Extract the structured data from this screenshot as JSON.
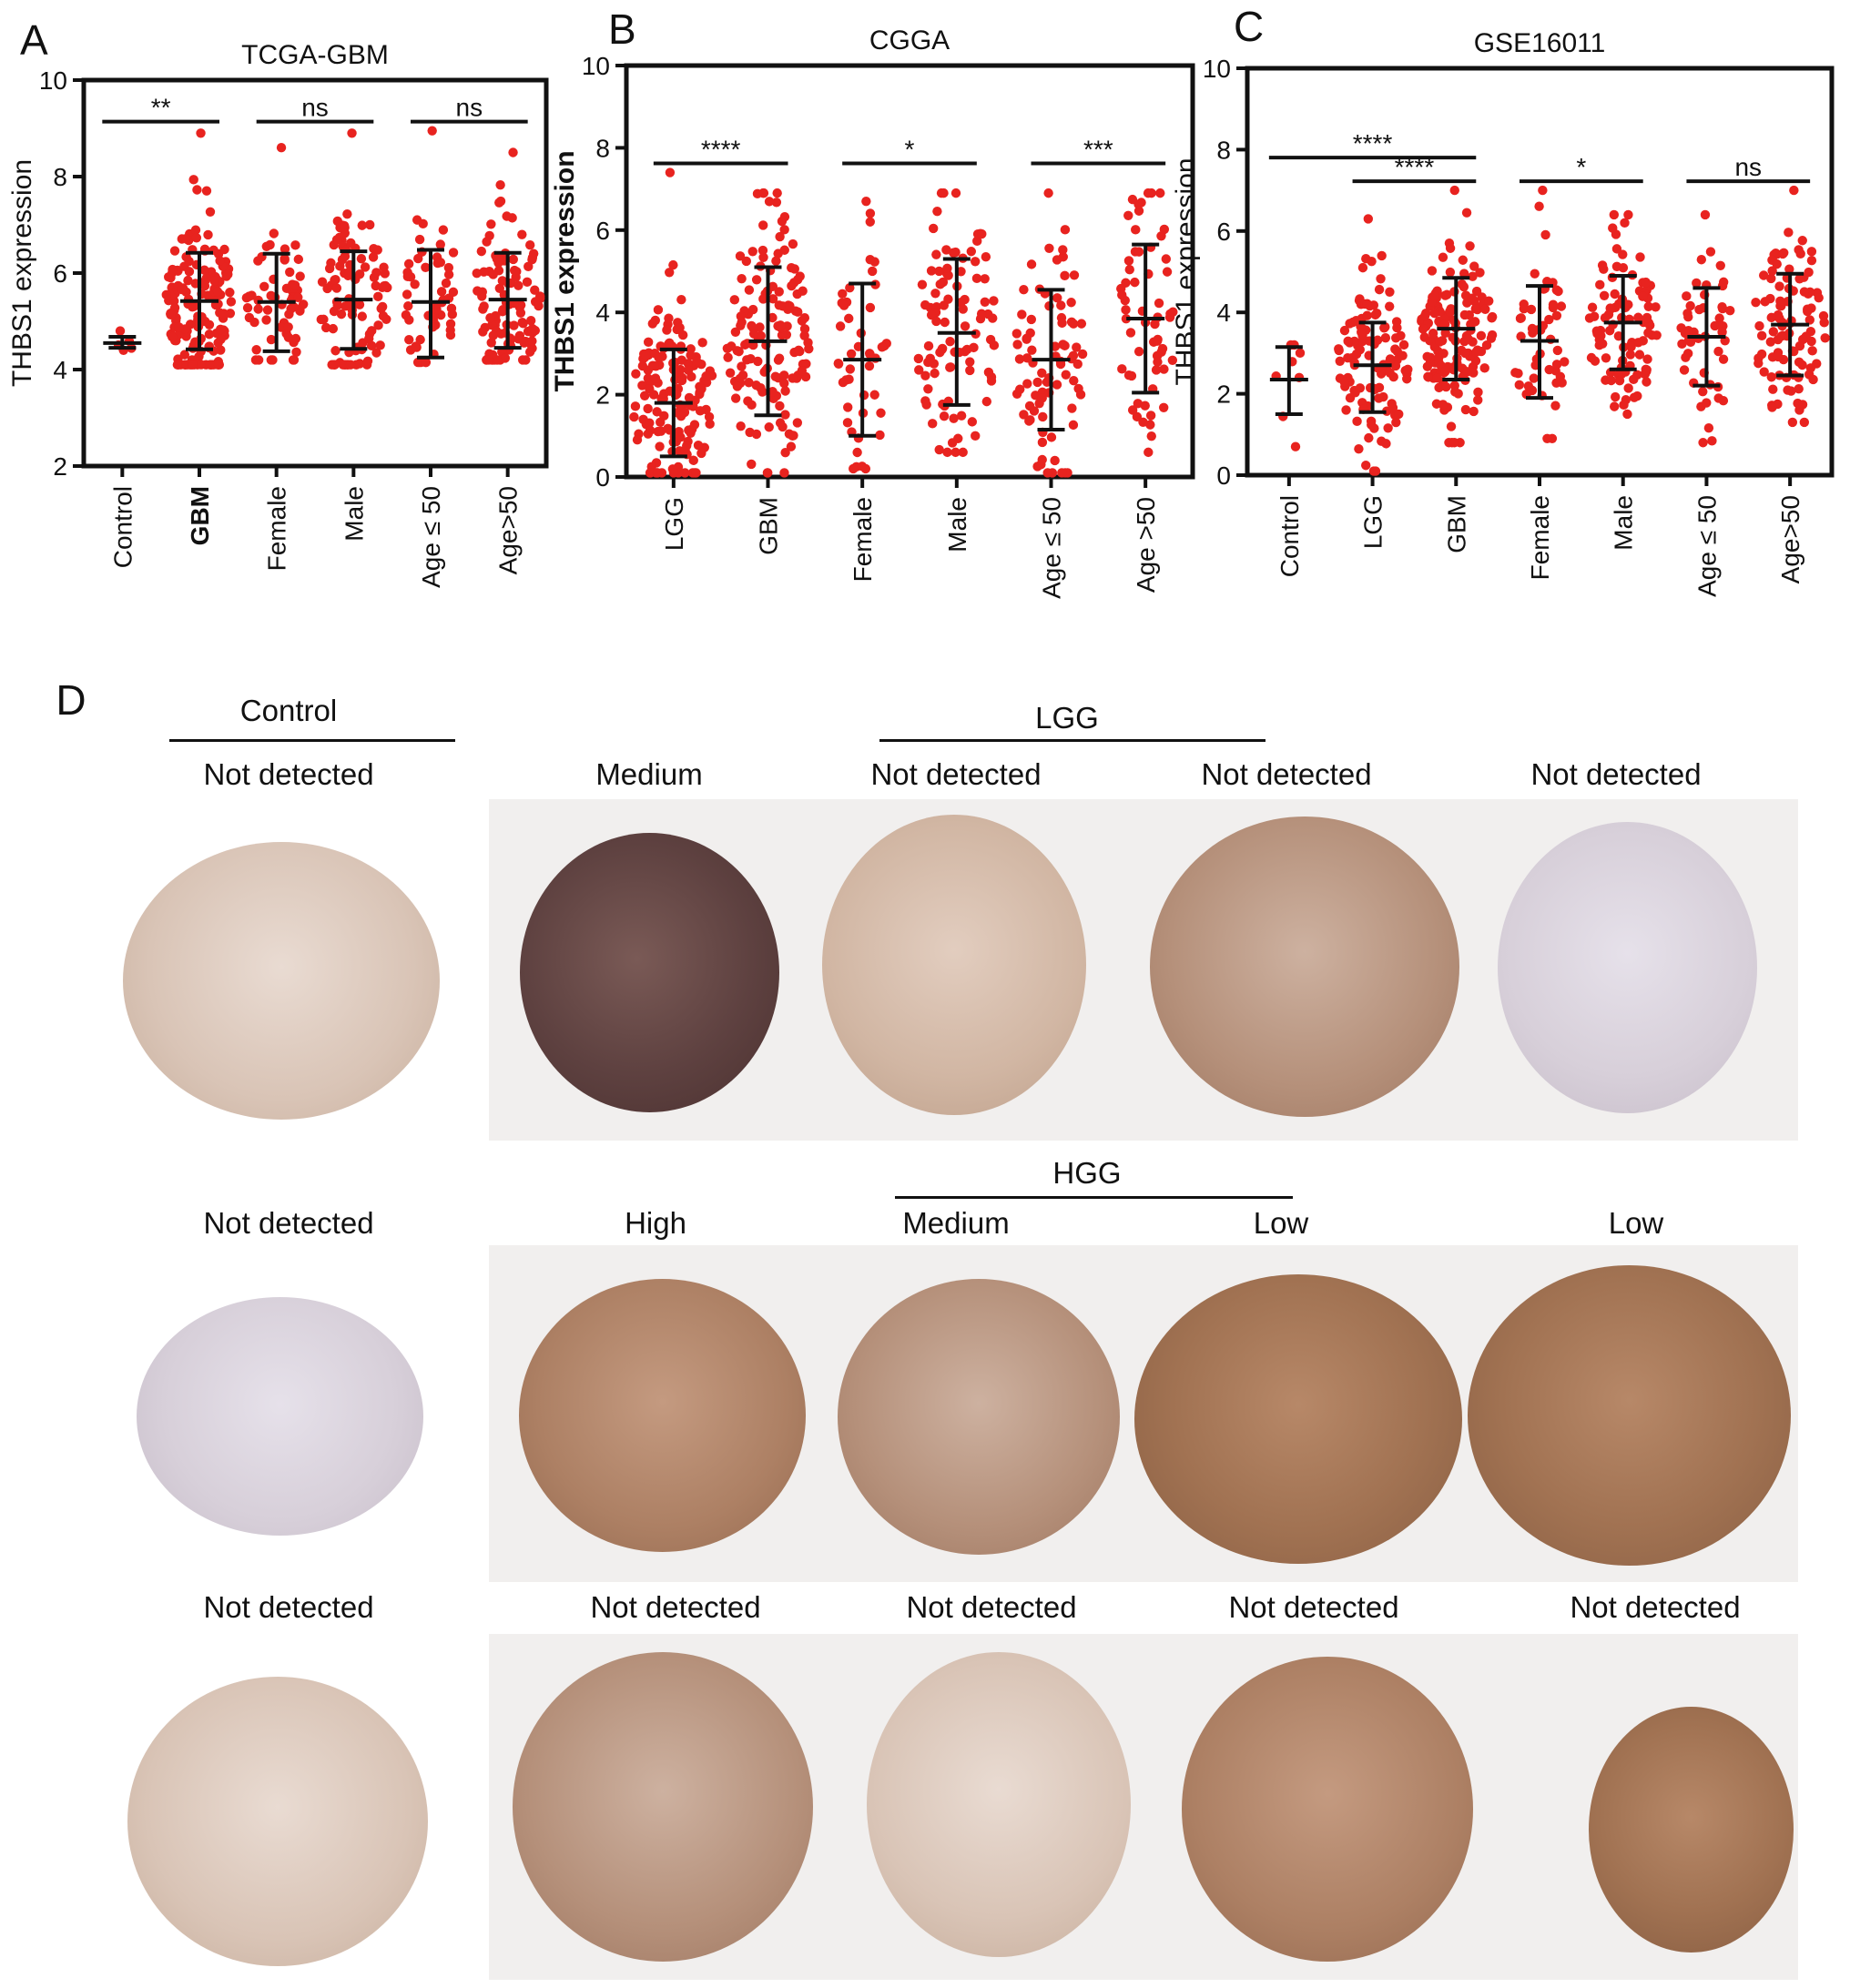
{
  "chart_data": [
    {
      "panel": "A",
      "type": "scatter",
      "title": "TCGA-GBM",
      "ylabel": "THBS1 expression",
      "ylim": [
        2,
        10
      ],
      "yticks": [
        2,
        4,
        6,
        8,
        10
      ],
      "categories": [
        "Control",
        "GBM",
        "Female",
        "Male",
        "Age ≤ 50",
        "Age>50"
      ],
      "bold_categories": [
        "GBM"
      ],
      "series": [
        {
          "category": "Control",
          "mean": 4.55,
          "sd_low": 4.45,
          "sd_high": 4.68,
          "min": 4.4,
          "max": 4.8,
          "n": 5
        },
        {
          "category": "GBM",
          "mean": 5.42,
          "sd_low": 4.42,
          "sd_high": 6.42,
          "min": 4.1,
          "max": 8.9,
          "n": 160
        },
        {
          "category": "Female",
          "mean": 5.4,
          "sd_low": 4.38,
          "sd_high": 6.4,
          "min": 4.2,
          "max": 8.6,
          "n": 60
        },
        {
          "category": "Male",
          "mean": 5.45,
          "sd_low": 4.43,
          "sd_high": 6.45,
          "min": 4.1,
          "max": 8.9,
          "n": 100
        },
        {
          "category": "Age ≤ 50",
          "mean": 5.4,
          "sd_low": 4.25,
          "sd_high": 6.48,
          "min": 4.15,
          "max": 8.95,
          "n": 55
        },
        {
          "category": "Age>50",
          "mean": 5.45,
          "sd_low": 4.45,
          "sd_high": 6.42,
          "min": 4.2,
          "max": 8.5,
          "n": 105
        }
      ],
      "significance": [
        {
          "from": 0,
          "to": 1,
          "label": "**"
        },
        {
          "from": 2,
          "to": 3,
          "label": "ns"
        },
        {
          "from": 4,
          "to": 5,
          "label": "ns"
        }
      ]
    },
    {
      "panel": "B",
      "type": "scatter",
      "title": "CGGA",
      "ylabel": "THBS1 expression",
      "ylim": [
        0,
        10
      ],
      "yticks": [
        0,
        2,
        4,
        6,
        8,
        10
      ],
      "categories": [
        "LGG",
        "GBM",
        "Female",
        "Male",
        "Age ≤ 50",
        "Age >50"
      ],
      "bold_categories": [],
      "series": [
        {
          "category": "LGG",
          "mean": 1.8,
          "sd_low": 0.5,
          "sd_high": 3.1,
          "min": 0.1,
          "max": 7.4,
          "n": 150
        },
        {
          "category": "GBM",
          "mean": 3.3,
          "sd_low": 1.5,
          "sd_high": 5.1,
          "min": 0.1,
          "max": 6.9,
          "n": 140
        },
        {
          "category": "Female",
          "mean": 2.85,
          "sd_low": 1.0,
          "sd_high": 4.7,
          "min": 0.2,
          "max": 6.7,
          "n": 45
        },
        {
          "category": "Male",
          "mean": 3.5,
          "sd_low": 1.75,
          "sd_high": 5.3,
          "min": 0.6,
          "max": 6.9,
          "n": 95
        },
        {
          "category": "Age ≤ 50",
          "mean": 2.85,
          "sd_low": 1.15,
          "sd_high": 4.55,
          "min": 0.1,
          "max": 6.9,
          "n": 80
        },
        {
          "category": "Age >50",
          "mean": 3.85,
          "sd_low": 2.05,
          "sd_high": 5.65,
          "min": 0.6,
          "max": 6.9,
          "n": 60
        }
      ],
      "significance": [
        {
          "from": 0,
          "to": 1,
          "label": "****"
        },
        {
          "from": 2,
          "to": 3,
          "label": "*"
        },
        {
          "from": 4,
          "to": 5,
          "label": "***"
        }
      ]
    },
    {
      "panel": "C",
      "type": "scatter",
      "title": "GSE16011",
      "ylabel": "THBS1 expression",
      "ylim": [
        0,
        10
      ],
      "yticks": [
        0,
        2,
        4,
        6,
        8,
        10
      ],
      "categories": [
        "Control",
        "LGG",
        "GBM",
        "Female",
        "Male",
        "Age ≤ 50",
        "Age>50"
      ],
      "bold_categories": [],
      "series": [
        {
          "category": "Control",
          "mean": 2.35,
          "sd_low": 1.5,
          "sd_high": 3.15,
          "min": 0.7,
          "max": 3.2,
          "n": 8
        },
        {
          "category": "LGG",
          "mean": 2.7,
          "sd_low": 1.55,
          "sd_high": 3.75,
          "min": 0.1,
          "max": 6.3,
          "n": 110
        },
        {
          "category": "GBM",
          "mean": 3.6,
          "sd_low": 2.35,
          "sd_high": 4.85,
          "min": 0.8,
          "max": 7.0,
          "n": 150
        },
        {
          "category": "Female",
          "mean": 3.3,
          "sd_low": 1.9,
          "sd_high": 4.65,
          "min": 0.9,
          "max": 7.0,
          "n": 50
        },
        {
          "category": "Male",
          "mean": 3.75,
          "sd_low": 2.6,
          "sd_high": 4.9,
          "min": 1.5,
          "max": 6.4,
          "n": 100
        },
        {
          "category": "Age ≤ 50",
          "mean": 3.4,
          "sd_low": 2.2,
          "sd_high": 4.6,
          "min": 0.8,
          "max": 6.4,
          "n": 50
        },
        {
          "category": "Age>50",
          "mean": 3.7,
          "sd_low": 2.45,
          "sd_high": 4.95,
          "min": 1.3,
          "max": 7.0,
          "n": 100
        }
      ],
      "significance": [
        {
          "from": 0,
          "to": 2,
          "label": "****",
          "level": 2
        },
        {
          "from": 1,
          "to": 2,
          "label": "****",
          "level": 1
        },
        {
          "from": 3,
          "to": 4,
          "label": "*",
          "level": 1
        },
        {
          "from": 5,
          "to": 6,
          "label": "ns",
          "level": 1
        }
      ]
    }
  ],
  "ihc": {
    "panel_letter": "D",
    "groups": {
      "control": "Control",
      "lgg": "LGG",
      "hgg": "HGG"
    },
    "rows": [
      {
        "labels": [
          "Not detected",
          "Medium",
          "Not detected",
          "Not detected",
          "Not detected"
        ]
      },
      {
        "labels": [
          "Not detected",
          "High",
          "Medium",
          "Low",
          "Low"
        ]
      },
      {
        "labels": [
          "Not detected",
          "Not detected",
          "Not detected",
          "Not detected",
          "Not detected"
        ]
      }
    ]
  },
  "colors": {
    "dot": "#e8231f",
    "axis": "#111111",
    "errorbar": "#111111"
  }
}
